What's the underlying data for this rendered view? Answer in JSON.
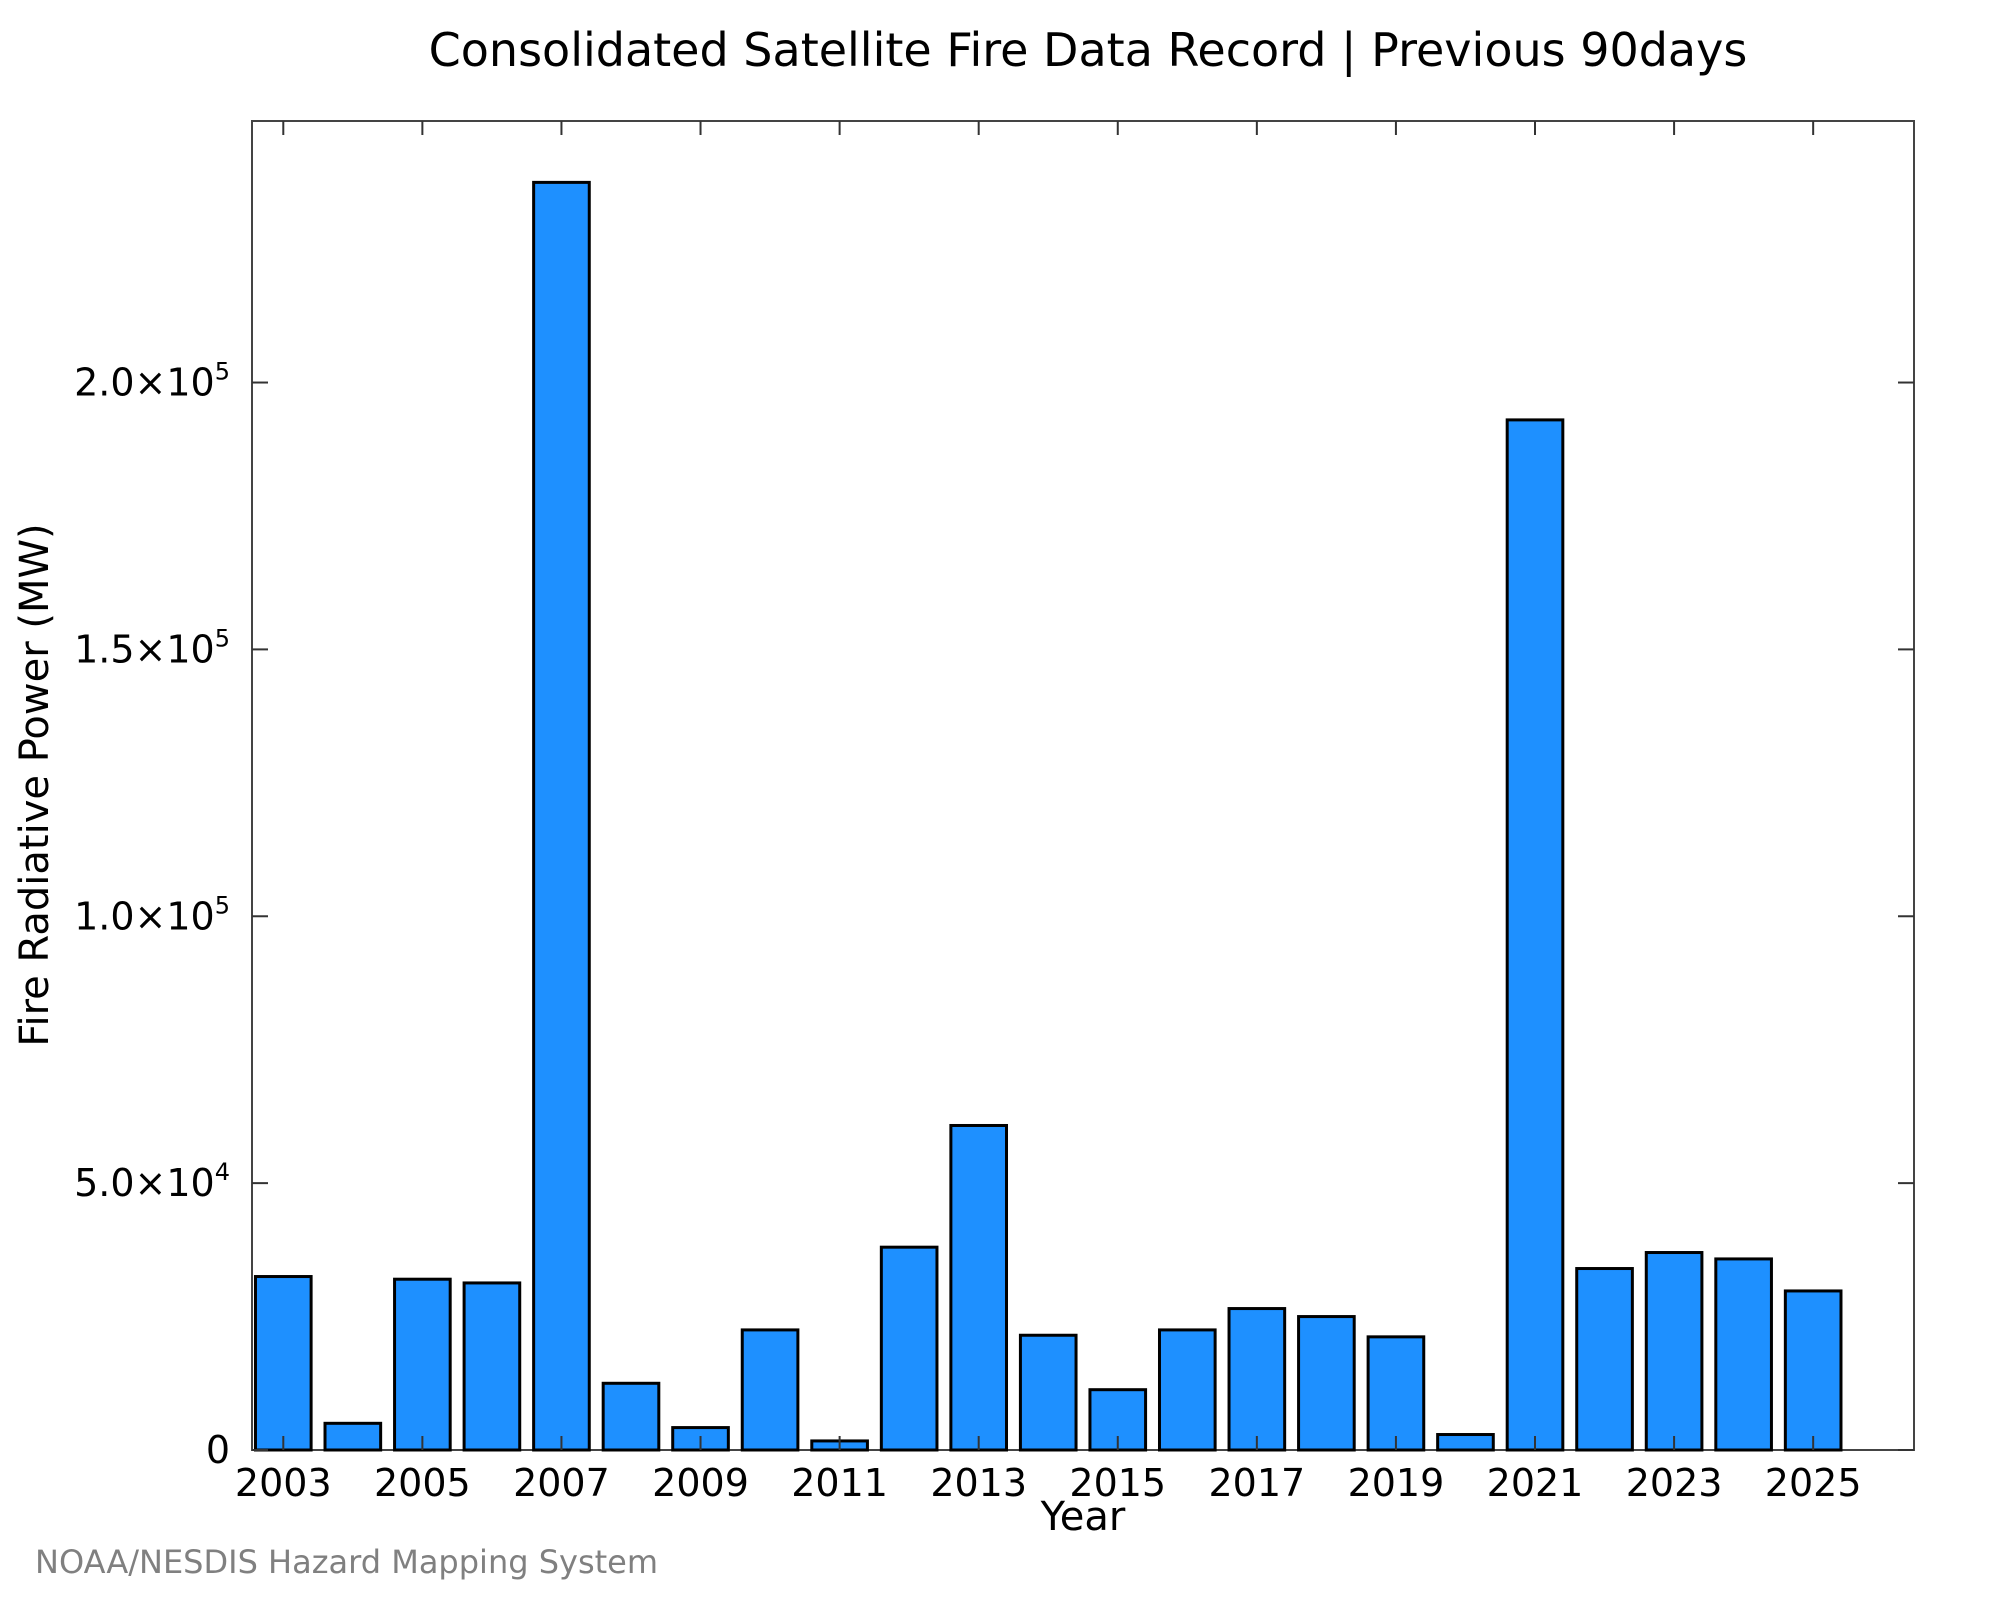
{
  "chart_data": {
    "type": "bar",
    "title": "Consolidated Satellite Fire Data Record | Previous 90days",
    "xlabel": "Year",
    "ylabel": "Fire Radiative Power (MW)",
    "credit": "NOAA/NESDIS Hazard Mapping System",
    "bar_color": "#1E90FF",
    "credit_color": "#808080",
    "categories": [
      2003,
      2004,
      2005,
      2006,
      2007,
      2008,
      2009,
      2010,
      2011,
      2012,
      2013,
      2014,
      2015,
      2016,
      2017,
      2018,
      2019,
      2020,
      2021,
      2022,
      2023,
      2024,
      2025
    ],
    "values": [
      32500,
      5000,
      32000,
      31300,
      237500,
      12500,
      4200,
      22500,
      1700,
      38000,
      60800,
      21500,
      11300,
      22500,
      26500,
      25000,
      21200,
      2900,
      193000,
      34000,
      37000,
      35800,
      29800
    ],
    "xlim": [
      2002.55,
      2026.45
    ],
    "ylim": [
      0,
      249000
    ],
    "x_ticks": [
      {
        "value": 2003,
        "label": "2003"
      },
      {
        "value": 2005,
        "label": "2005"
      },
      {
        "value": 2007,
        "label": "2007"
      },
      {
        "value": 2009,
        "label": "2009"
      },
      {
        "value": 2011,
        "label": "2011"
      },
      {
        "value": 2013,
        "label": "2013"
      },
      {
        "value": 2015,
        "label": "2015"
      },
      {
        "value": 2017,
        "label": "2017"
      },
      {
        "value": 2019,
        "label": "2019"
      },
      {
        "value": 2021,
        "label": "2021"
      },
      {
        "value": 2023,
        "label": "2023"
      },
      {
        "value": 2025,
        "label": "2025"
      }
    ],
    "y_ticks": [
      {
        "value": 0,
        "mantissa": "0",
        "exponent": ""
      },
      {
        "value": 50000,
        "mantissa": "5.0×10",
        "exponent": "4"
      },
      {
        "value": 100000,
        "mantissa": "1.0×10",
        "exponent": "5"
      },
      {
        "value": 150000,
        "mantissa": "1.5×10",
        "exponent": "5"
      },
      {
        "value": 200000,
        "mantissa": "2.0×10",
        "exponent": "5"
      }
    ],
    "grid": false,
    "legend": "none"
  }
}
